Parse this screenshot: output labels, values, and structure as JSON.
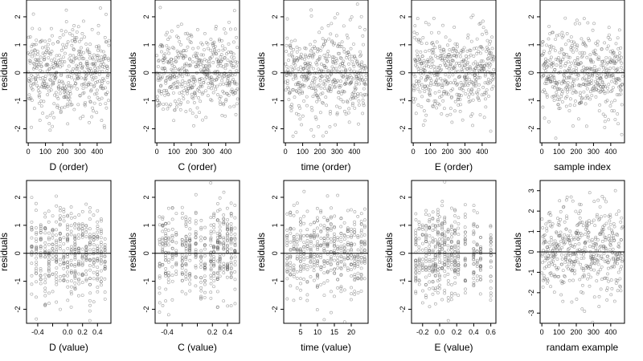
{
  "chart_data": [
    {
      "type": "scatter",
      "xlabel": "D (order)",
      "ylabel": "residuals",
      "x_mode": "order",
      "n": 470,
      "xlim": [
        -10,
        480
      ],
      "ylim": [
        -2.5,
        2.6
      ],
      "x_ticks": [
        0,
        100,
        200,
        300,
        400
      ],
      "x_tick_labels": [
        "0",
        "100",
        "200",
        "300",
        "400"
      ],
      "y_ticks": [
        -2,
        -1,
        0,
        1,
        2
      ],
      "y_tick_labels": [
        "-2",
        "-1",
        "0",
        "1",
        "2"
      ],
      "zero_line": true
    },
    {
      "type": "scatter",
      "xlabel": "C (order)",
      "ylabel": "residuals",
      "x_mode": "order",
      "n": 470,
      "xlim": [
        -10,
        480
      ],
      "ylim": [
        -2.5,
        2.6
      ],
      "x_ticks": [
        0,
        100,
        200,
        300,
        400
      ],
      "x_tick_labels": [
        "0",
        "100",
        "200",
        "300",
        "400"
      ],
      "y_ticks": [
        -2,
        -1,
        0,
        1,
        2
      ],
      "y_tick_labels": [
        "-2",
        "-1",
        "0",
        "1",
        "2"
      ],
      "zero_line": true
    },
    {
      "type": "scatter",
      "xlabel": "time (order)",
      "ylabel": "residuals",
      "x_mode": "order",
      "n": 470,
      "xlim": [
        -10,
        480
      ],
      "ylim": [
        -2.5,
        2.6
      ],
      "x_ticks": [
        0,
        100,
        200,
        300,
        400
      ],
      "x_tick_labels": [
        "0",
        "100",
        "200",
        "300",
        "400"
      ],
      "y_ticks": [
        -2,
        -1,
        0,
        1,
        2
      ],
      "y_tick_labels": [
        "-2",
        "-1",
        "0",
        "1",
        "2"
      ],
      "zero_line": true
    },
    {
      "type": "scatter",
      "xlabel": "E (order)",
      "ylabel": "residuals",
      "x_mode": "order",
      "n": 470,
      "xlim": [
        -10,
        480
      ],
      "ylim": [
        -2.5,
        2.6
      ],
      "x_ticks": [
        0,
        100,
        200,
        300,
        400
      ],
      "x_tick_labels": [
        "0",
        "100",
        "200",
        "300",
        "400"
      ],
      "y_ticks": [
        -2,
        -1,
        0,
        1,
        2
      ],
      "y_tick_labels": [
        "-2",
        "-1",
        "0",
        "1",
        "2"
      ],
      "zero_line": true
    },
    {
      "type": "scatter",
      "xlabel": "sample index",
      "ylabel": "residuals",
      "x_mode": "order",
      "n": 470,
      "xlim": [
        -10,
        480
      ],
      "ylim": [
        -2.5,
        2.6
      ],
      "x_ticks": [
        0,
        100,
        200,
        300,
        400
      ],
      "x_tick_labels": [
        "0",
        "100",
        "200",
        "300",
        "400"
      ],
      "y_ticks": [
        -2,
        -1,
        0,
        1,
        2
      ],
      "y_tick_labels": [
        "-2",
        "-1",
        "0",
        "1",
        "2"
      ],
      "zero_line": true
    },
    {
      "type": "scatter",
      "xlabel": "D (value)",
      "ylabel": "residuals",
      "x_mode": "columns",
      "n": 470,
      "x_levels": [
        -0.48,
        -0.42,
        -0.36,
        -0.3,
        -0.25,
        -0.2,
        -0.15,
        -0.1,
        -0.05,
        0,
        0.05,
        0.1,
        0.15,
        0.2,
        0.25,
        0.3,
        0.35,
        0.4,
        0.45,
        0.5
      ],
      "xlim": [
        -0.55,
        0.58
      ],
      "ylim": [
        -2.5,
        2.6
      ],
      "x_ticks": [
        -0.4,
        -0.2,
        0,
        0.2,
        0.4
      ],
      "x_tick_labels": [
        "-0.4",
        "0.0",
        "0.2",
        "0.4"
      ],
      "x_tick_label_values": [
        -0.4,
        0,
        0.2,
        0.4
      ],
      "y_ticks": [
        -2,
        -1,
        0,
        1,
        2
      ],
      "y_tick_labels": [
        "-2",
        "-1",
        "0",
        "1",
        "2"
      ],
      "zero_line": true
    },
    {
      "type": "scatter",
      "xlabel": "C (value)",
      "ylabel": "residuals",
      "x_mode": "columns",
      "n": 470,
      "x_levels": [
        -0.5,
        -0.46,
        -0.42,
        -0.38,
        -0.33,
        -0.28,
        -0.2,
        -0.15,
        -0.1,
        -0.02,
        0.05,
        0.1,
        0.18,
        0.22,
        0.27,
        0.3,
        0.35,
        0.4,
        0.45,
        0.5
      ],
      "xlim": [
        -0.56,
        0.56
      ],
      "ylim": [
        -2.5,
        2.6
      ],
      "x_ticks": [
        -0.4,
        -0.2,
        0,
        0.2,
        0.4
      ],
      "x_tick_labels": [
        "-0.4",
        "0.2",
        "0.4"
      ],
      "x_tick_label_values": [
        -0.4,
        0.2,
        0.4
      ],
      "y_ticks": [
        -2,
        -1,
        0,
        1,
        2
      ],
      "y_tick_labels": [
        "-2",
        "-1",
        "0",
        "1",
        "2"
      ],
      "zero_line": true
    },
    {
      "type": "scatter",
      "xlabel": "time (value)",
      "ylabel": "residuals",
      "x_mode": "columns",
      "n": 470,
      "x_levels": [
        1,
        2,
        3,
        4,
        5,
        6,
        7,
        8,
        9,
        10,
        11,
        12,
        13,
        14,
        15,
        16,
        17,
        18,
        19,
        20,
        21,
        22,
        23,
        24
      ],
      "xlim": [
        0,
        25
      ],
      "ylim": [
        -2.5,
        2.6
      ],
      "x_ticks": [
        5,
        10,
        15,
        20
      ],
      "x_tick_labels": [
        "5",
        "10",
        "15",
        "20"
      ],
      "y_ticks": [
        -2,
        -1,
        0,
        1,
        2
      ],
      "y_tick_labels": [
        "-2",
        "-1",
        "0",
        "1",
        "2"
      ],
      "zero_line": true
    },
    {
      "type": "scatter",
      "xlabel": "E (value)",
      "ylabel": "residuals",
      "x_mode": "columns",
      "n": 470,
      "x_levels": [
        -0.28,
        -0.24,
        -0.2,
        -0.16,
        -0.12,
        -0.08,
        -0.05,
        -0.02,
        0,
        0.03,
        0.06,
        0.1,
        0.14,
        0.18,
        0.22,
        0.3,
        0.4,
        0.44,
        0.48,
        0.6
      ],
      "xlim": [
        -0.33,
        0.66
      ],
      "ylim": [
        -2.5,
        2.6
      ],
      "x_ticks": [
        -0.2,
        0,
        0.2,
        0.4,
        0.6
      ],
      "x_tick_labels": [
        "-0.2",
        "0.0",
        "0.2",
        "0.4",
        "0.6"
      ],
      "y_ticks": [
        -2,
        -1,
        0,
        1,
        2
      ],
      "y_tick_labels": [
        "-2",
        "-1",
        "0",
        "1",
        "2"
      ],
      "zero_line": true
    },
    {
      "type": "scatter",
      "xlabel": "randam example",
      "ylabel": "residuals",
      "x_mode": "order",
      "n": 470,
      "y_spread": 1.1,
      "xlim": [
        -10,
        480
      ],
      "ylim": [
        -3.5,
        3.5
      ],
      "x_ticks": [
        0,
        100,
        200,
        300,
        400
      ],
      "x_tick_labels": [
        "0",
        "100",
        "200",
        "300",
        "400"
      ],
      "y_ticks": [
        -3,
        -2,
        -1,
        0,
        1,
        2,
        3
      ],
      "y_tick_labels": [
        "-3",
        "-2",
        "-1",
        "0",
        "1",
        "2",
        "3"
      ],
      "zero_line": true
    }
  ]
}
